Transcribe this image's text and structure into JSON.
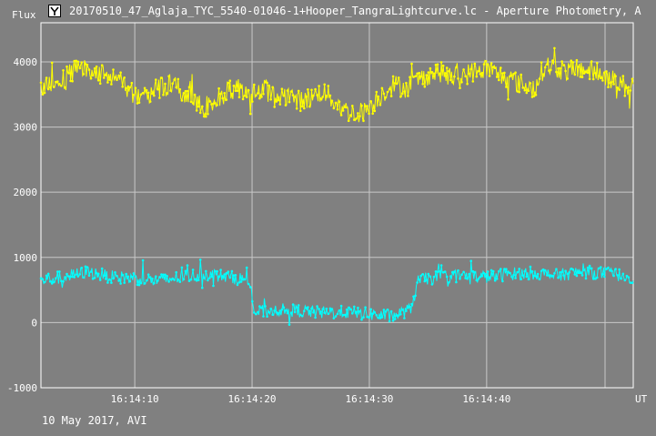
{
  "window": {
    "title": "20170510_47_Aglaja_TYC_5540-01046-1+Hooper_TangraLightcurve.lc - Aperture Photometry, A",
    "icon": "tangra-app-icon"
  },
  "footer": {
    "note": "10 May 2017, AVI"
  },
  "colors": {
    "background": "#808080",
    "grid": "#c8c8c8",
    "yellow": "#ffff00",
    "cyan": "#00ffff",
    "text": "#ffffff"
  },
  "chart_data": {
    "type": "line",
    "ylabel": "Flux",
    "xlabel": "UT",
    "ylim": [
      -1000,
      4600
    ],
    "xlim": [
      "16:14:02.0",
      "16:14:52.5"
    ],
    "grid": true,
    "y_ticks": [
      -1000,
      0,
      1000,
      2000,
      3000,
      4000
    ],
    "x_ticks": [
      "16:14:10",
      "16:14:20",
      "16:14:30",
      "16:14:40"
    ],
    "x_tick_seconds": [
      10,
      20,
      30,
      40
    ],
    "x_seconds_range": [
      2.0,
      52.5
    ],
    "series": [
      {
        "color": "#ffff00",
        "profile": [
          [
            2.0,
            3650
          ],
          [
            4.0,
            3750
          ],
          [
            5.0,
            3900
          ],
          [
            6.0,
            3850
          ],
          [
            8.0,
            3800
          ],
          [
            9.0,
            3650
          ],
          [
            10.0,
            3500
          ],
          [
            11.0,
            3450
          ],
          [
            12.0,
            3600
          ],
          [
            13.0,
            3650
          ],
          [
            14.0,
            3550
          ],
          [
            15.0,
            3400
          ],
          [
            16.0,
            3300
          ],
          [
            17.0,
            3450
          ],
          [
            18.0,
            3550
          ],
          [
            19.0,
            3600
          ],
          [
            20.0,
            3500
          ],
          [
            21.0,
            3600
          ],
          [
            22.0,
            3450
          ],
          [
            23.0,
            3500
          ],
          [
            24.0,
            3400
          ],
          [
            25.0,
            3450
          ],
          [
            26.0,
            3550
          ],
          [
            27.0,
            3400
          ],
          [
            28.0,
            3250
          ],
          [
            29.0,
            3200
          ],
          [
            30.0,
            3300
          ],
          [
            31.0,
            3500
          ],
          [
            32.0,
            3650
          ],
          [
            33.0,
            3600
          ],
          [
            34.0,
            3700
          ],
          [
            35.0,
            3800
          ],
          [
            36.0,
            3850
          ],
          [
            37.0,
            3750
          ],
          [
            38.0,
            3800
          ],
          [
            39.0,
            3850
          ],
          [
            40.0,
            3900
          ],
          [
            41.0,
            3800
          ],
          [
            42.0,
            3750
          ],
          [
            43.0,
            3650
          ],
          [
            44.0,
            3600
          ],
          [
            45.0,
            3950
          ],
          [
            46.0,
            3900
          ],
          [
            47.0,
            3850
          ],
          [
            48.0,
            3900
          ],
          [
            49.0,
            3850
          ],
          [
            50.0,
            3800
          ],
          [
            51.0,
            3700
          ],
          [
            52.0,
            3600
          ],
          [
            52.5,
            3650
          ]
        ],
        "noise": 160
      },
      {
        "color": "#00ffff",
        "profile": [
          [
            2.0,
            650
          ],
          [
            4.0,
            700
          ],
          [
            6.0,
            780
          ],
          [
            8.0,
            700
          ],
          [
            10.0,
            680
          ],
          [
            12.0,
            640
          ],
          [
            14.0,
            700
          ],
          [
            16.0,
            750
          ],
          [
            18.0,
            700
          ],
          [
            19.8,
            650
          ],
          [
            20.2,
            150
          ],
          [
            22.0,
            200
          ],
          [
            24.0,
            180
          ],
          [
            26.0,
            150
          ],
          [
            28.0,
            160
          ],
          [
            30.0,
            130
          ],
          [
            32.0,
            100
          ],
          [
            33.5,
            200
          ],
          [
            34.2,
            650
          ],
          [
            36.0,
            700
          ],
          [
            38.0,
            720
          ],
          [
            40.0,
            700
          ],
          [
            42.0,
            750
          ],
          [
            44.0,
            760
          ],
          [
            46.0,
            720
          ],
          [
            48.0,
            780
          ],
          [
            50.0,
            760
          ],
          [
            52.5,
            700
          ]
        ],
        "noise": 100
      }
    ]
  }
}
